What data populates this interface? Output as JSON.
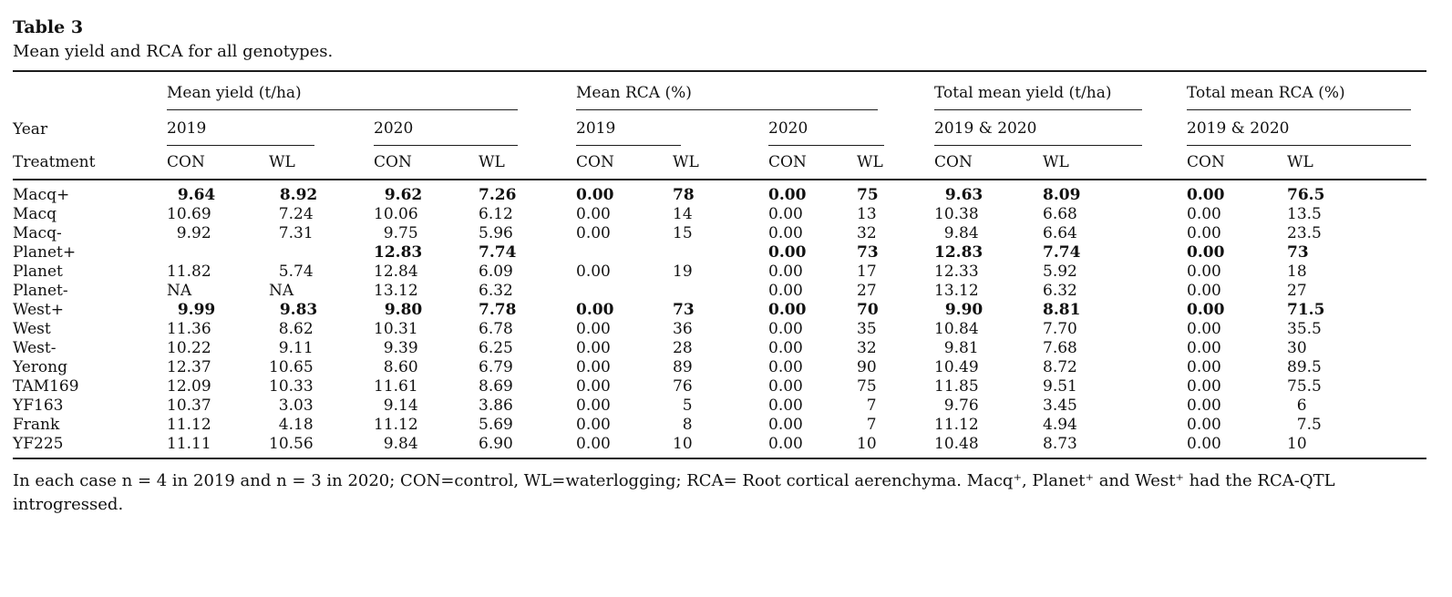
{
  "title": "Table 3",
  "caption": "Mean yield and RCA for all genotypes.",
  "header": {
    "row_label_top": "Year",
    "row_label_bottom": "Treatment",
    "groups": [
      {
        "label": "Mean yield (t/ha)",
        "years": [
          "2019",
          "2020"
        ]
      },
      {
        "label": "Mean RCA (%)",
        "years": [
          "2019",
          "2020"
        ]
      },
      {
        "label": "Total mean yield (t/ha)",
        "years": [
          "2019 & 2020"
        ]
      },
      {
        "label": "Total mean RCA (%)",
        "years": [
          "2019 & 2020"
        ]
      }
    ],
    "treatments": [
      "CON",
      "WL"
    ]
  },
  "rows": [
    {
      "genotype": "Macq+",
      "bold": true,
      "values": [
        "9.64",
        "8.92",
        "9.62",
        "7.26",
        "0.00",
        "78",
        "0.00",
        "75",
        "9.63",
        "8.09",
        "0.00",
        "76.5"
      ]
    },
    {
      "genotype": "Macq",
      "bold": false,
      "values": [
        "10.69",
        "7.24",
        "10.06",
        "6.12",
        "0.00",
        "14",
        "0.00",
        "13",
        "10.38",
        "6.68",
        "0.00",
        "13.5"
      ]
    },
    {
      "genotype": "Macq-",
      "bold": false,
      "values": [
        "9.92",
        "7.31",
        "9.75",
        "5.96",
        "0.00",
        "15",
        "0.00",
        "32",
        "9.84",
        "6.64",
        "0.00",
        "23.5"
      ]
    },
    {
      "genotype": "Planet+",
      "bold": true,
      "values": [
        "",
        "",
        "12.83",
        "7.74",
        "",
        "",
        "0.00",
        "73",
        "12.83",
        "7.74",
        "0.00",
        "73"
      ]
    },
    {
      "genotype": "Planet",
      "bold": false,
      "values": [
        "11.82",
        "5.74",
        "12.84",
        "6.09",
        "0.00",
        "19",
        "0.00",
        "17",
        "12.33",
        "5.92",
        "0.00",
        "18"
      ]
    },
    {
      "genotype": "Planet-",
      "bold": false,
      "values": [
        "NA",
        "NA",
        "13.12",
        "6.32",
        "",
        "",
        "0.00",
        "27",
        "13.12",
        "6.32",
        "0.00",
        "27"
      ]
    },
    {
      "genotype": "West+",
      "bold": true,
      "values": [
        "9.99",
        "9.83",
        "9.80",
        "7.78",
        "0.00",
        "73",
        "0.00",
        "70",
        "9.90",
        "8.81",
        "0.00",
        "71.5"
      ]
    },
    {
      "genotype": "West",
      "bold": false,
      "values": [
        "11.36",
        "8.62",
        "10.31",
        "6.78",
        "0.00",
        "36",
        "0.00",
        "35",
        "10.84",
        "7.70",
        "0.00",
        "35.5"
      ]
    },
    {
      "genotype": "West-",
      "bold": false,
      "values": [
        "10.22",
        "9.11",
        "9.39",
        "6.25",
        "0.00",
        "28",
        "0.00",
        "32",
        "9.81",
        "7.68",
        "0.00",
        "30"
      ]
    },
    {
      "genotype": "Yerong",
      "bold": false,
      "values": [
        "12.37",
        "10.65",
        "8.60",
        "6.79",
        "0.00",
        "89",
        "0.00",
        "90",
        "10.49",
        "8.72",
        "0.00",
        "89.5"
      ]
    },
    {
      "genotype": "TAM169",
      "bold": false,
      "values": [
        "12.09",
        "10.33",
        "11.61",
        "8.69",
        "0.00",
        "76",
        "0.00",
        "75",
        "11.85",
        "9.51",
        "0.00",
        "75.5"
      ]
    },
    {
      "genotype": "YF163",
      "bold": false,
      "values": [
        "10.37",
        "3.03",
        "9.14",
        "3.86",
        "0.00",
        "5",
        "0.00",
        "7",
        "9.76",
        "3.45",
        "0.00",
        "6"
      ]
    },
    {
      "genotype": "Frank",
      "bold": false,
      "values": [
        "11.12",
        "4.18",
        "11.12",
        "5.69",
        "0.00",
        "8",
        "0.00",
        "7",
        "11.12",
        "4.94",
        "0.00",
        "7.5"
      ]
    },
    {
      "genotype": "YF225",
      "bold": false,
      "values": [
        "11.11",
        "10.56",
        "9.84",
        "6.90",
        "0.00",
        "10",
        "0.00",
        "10",
        "10.48",
        "8.73",
        "0.00",
        "10"
      ]
    }
  ],
  "footnote": "In each case n = 4 in 2019 and n = 3 in 2020; CON=control, WL=waterlogging; RCA= Root cortical aerenchyma. Macq⁺, Planet⁺ and West⁺ had the RCA-QTL introgressed.",
  "colors": {
    "rule": "#1c1c1c",
    "text": "#111111",
    "background": "#ffffff"
  }
}
